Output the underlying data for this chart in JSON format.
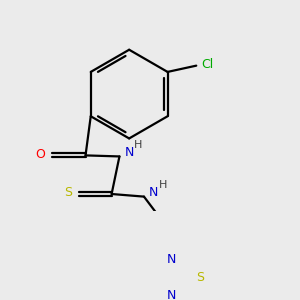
{
  "bg_color": "#ebebeb",
  "bond_color": "#000000",
  "atom_colors": {
    "O": "#ff0000",
    "N": "#0000cd",
    "S_thio": "#b8b800",
    "S_td": "#b8b800",
    "Cl": "#00aa00",
    "H": "#404040"
  },
  "lw": 1.6,
  "dbo": 0.038
}
